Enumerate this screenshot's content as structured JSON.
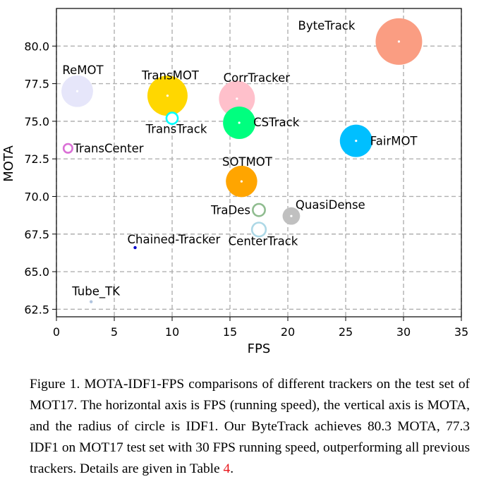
{
  "chart_data": {
    "type": "scatter",
    "title": "",
    "xlabel": "FPS",
    "ylabel": "MOTA",
    "xlim": [
      0,
      35
    ],
    "ylim": [
      62,
      82.5
    ],
    "xticks": [
      "0",
      "5",
      "10",
      "15",
      "20",
      "25",
      "30",
      "35"
    ],
    "yticks": [
      "62.5",
      "65.0",
      "67.5",
      "70.0",
      "72.5",
      "75.0",
      "77.5",
      "80.0"
    ],
    "grid": true,
    "size_encoding": "IDF1",
    "points": [
      {
        "name": "ByteTrack",
        "x": 29.6,
        "y": 80.3,
        "idf1": 77.3,
        "color": "#fa9d82",
        "filled": true
      },
      {
        "name": "ReMOT",
        "x": 1.8,
        "y": 77.0,
        "idf1": 72.0,
        "color": "#e6e6fa",
        "filled": true
      },
      {
        "name": "TransMOT",
        "x": 9.6,
        "y": 76.7,
        "idf1": 75.1,
        "color": "#ffd700",
        "filled": true
      },
      {
        "name": "CorrTracker",
        "x": 15.6,
        "y": 76.5,
        "idf1": 73.6,
        "color": "#ffc0cb",
        "filled": true
      },
      {
        "name": "TransTrack",
        "x": 10.0,
        "y": 75.2,
        "idf1": 63.5,
        "color": "#00ffff",
        "filled": false
      },
      {
        "name": "CSTrack",
        "x": 15.8,
        "y": 74.9,
        "idf1": 72.3,
        "color": "#00ff7f",
        "filled": true
      },
      {
        "name": "FairMOT",
        "x": 25.9,
        "y": 73.7,
        "idf1": 72.3,
        "color": "#00bfff",
        "filled": true
      },
      {
        "name": "TransCenter",
        "x": 1.0,
        "y": 73.2,
        "idf1": 62.2,
        "color": "#da70d6",
        "filled": false
      },
      {
        "name": "SOTMOT",
        "x": 16.0,
        "y": 71.0,
        "idf1": 71.9,
        "color": "#ffa500",
        "filled": true
      },
      {
        "name": "TraDes",
        "x": 17.5,
        "y": 69.1,
        "idf1": 63.9,
        "color": "#8fbc8f",
        "filled": false
      },
      {
        "name": "QuasiDense",
        "x": 20.3,
        "y": 68.7,
        "idf1": 66.3,
        "color": "#c0c0c0",
        "filled": true
      },
      {
        "name": "CenterTrack",
        "x": 17.5,
        "y": 67.8,
        "idf1": 64.7,
        "color": "#add8e6",
        "filled": false
      },
      {
        "name": "Chained-Tracker",
        "x": 6.8,
        "y": 66.6,
        "idf1": 57.4,
        "color": "#0000cd",
        "filled": true
      },
      {
        "name": "Tube_TK",
        "x": 3.0,
        "y": 63.0,
        "idf1": 58.6,
        "color": "#b0c4de",
        "filled": true
      }
    ]
  },
  "caption": {
    "text": "Figure 1. MOTA-IDF1-FPS comparisons of different trackers on the test set of MOT17. The horizontal axis is FPS (running speed), the vertical axis is MOTA, and the radius of circle is IDF1. Our ByteTrack achieves 80.3 MOTA, 77.3 IDF1 on MOT17 test set with 30 FPS running speed, outperforming all previous trackers. Details are given in Table ",
    "ref": "4",
    "end": "."
  }
}
